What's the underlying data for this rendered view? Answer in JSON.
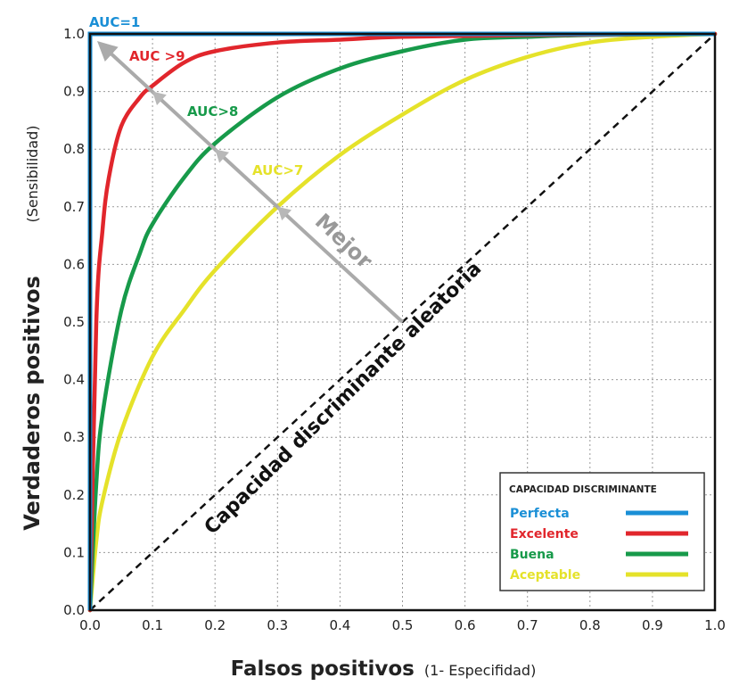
{
  "chart_data": {
    "type": "line",
    "xlabel": "Falsos positivos",
    "xlabel_sub": "(1- Especifidad)",
    "ylabel": "Verdaderos positivos",
    "ylabel_sub": "(Sensibilidad)",
    "xlim": [
      0,
      1
    ],
    "ylim": [
      0,
      1
    ],
    "xticks": [
      "0.0",
      "0.1",
      "0.2",
      "0.3",
      "0.4",
      "0.5",
      "0.6",
      "0.7",
      "0.8",
      "0.9",
      "1.0"
    ],
    "yticks": [
      "0.0",
      "0.1",
      "0.2",
      "0.3",
      "0.4",
      "0.5",
      "0.6",
      "0.7",
      "0.8",
      "0.9",
      "1.0"
    ],
    "grid": true,
    "series": [
      {
        "name": "Perfecta",
        "label": "AUC=1",
        "color": "#1a8fd6",
        "x": [
          0,
          0,
          1
        ],
        "y": [
          0,
          1,
          1
        ]
      },
      {
        "name": "Excelente",
        "label": "AUC >9",
        "color": "#e1262c",
        "x": [
          0,
          0.01,
          0.02,
          0.03,
          0.05,
          0.08,
          0.1,
          0.15,
          0.2,
          0.3,
          0.4,
          0.5,
          0.7,
          1.0
        ],
        "y": [
          0,
          0.5,
          0.66,
          0.75,
          0.84,
          0.89,
          0.91,
          0.95,
          0.97,
          0.985,
          0.99,
          0.995,
          0.998,
          1.0
        ]
      },
      {
        "name": "Buena",
        "label": "AUC>8",
        "color": "#179a4a",
        "x": [
          0,
          0.01,
          0.02,
          0.05,
          0.08,
          0.1,
          0.15,
          0.2,
          0.3,
          0.4,
          0.5,
          0.6,
          0.7,
          0.8,
          1.0
        ],
        "y": [
          0,
          0.22,
          0.34,
          0.52,
          0.62,
          0.67,
          0.75,
          0.81,
          0.89,
          0.94,
          0.97,
          0.99,
          0.995,
          0.998,
          1.0
        ]
      },
      {
        "name": "Aceptable",
        "label": "AUC>7",
        "color": "#e5e22a",
        "x": [
          0,
          0.01,
          0.02,
          0.05,
          0.1,
          0.15,
          0.2,
          0.3,
          0.4,
          0.5,
          0.6,
          0.7,
          0.8,
          0.9,
          1.0
        ],
        "y": [
          0,
          0.12,
          0.19,
          0.31,
          0.44,
          0.52,
          0.59,
          0.7,
          0.79,
          0.86,
          0.92,
          0.96,
          0.985,
          0.995,
          1.0
        ]
      }
    ],
    "reference_line": {
      "label": "Capacidad discriminante aleatoria",
      "x": [
        0,
        1
      ],
      "y": [
        0,
        1
      ],
      "style": "dashed"
    },
    "arrow": {
      "label": "Mejor",
      "color": "#aaaaaa",
      "from": [
        0.5,
        0.5
      ],
      "to": [
        0,
        1
      ]
    },
    "legend": {
      "title": "CAPACIDAD DISCRIMINANTE",
      "placement": "bottom-right",
      "entries": [
        "Perfecta",
        "Excelente",
        "Buena",
        "Aceptable"
      ]
    }
  }
}
